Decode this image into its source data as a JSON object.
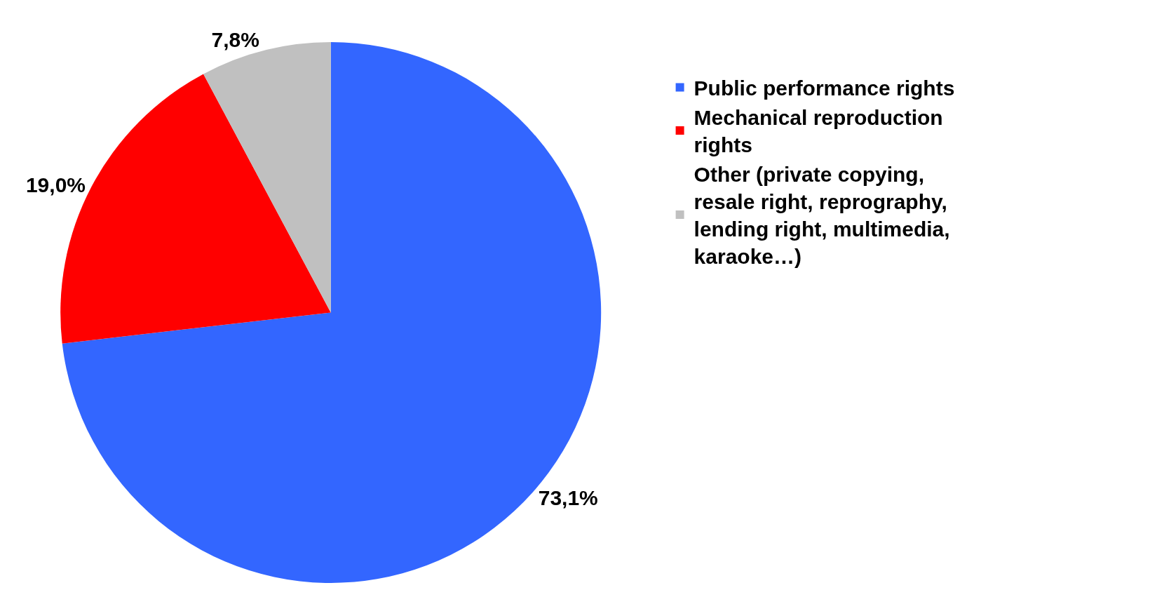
{
  "chart_data": {
    "type": "pie",
    "categories": [
      "Public performance rights",
      "Mechanical reproduction rights",
      "Other (private copying, resale right, reprography, lending right, multimedia, karaoke…)"
    ],
    "values": [
      73.1,
      19.0,
      7.8
    ],
    "value_labels": [
      "73,1%",
      "19,0%",
      "7,8%"
    ],
    "colors": [
      "#3366ff",
      "#ff0000",
      "#c0c0c0"
    ],
    "legend": "right"
  }
}
